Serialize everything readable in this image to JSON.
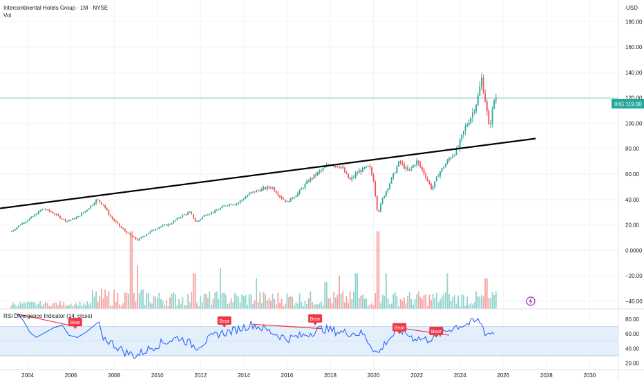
{
  "header": {
    "symbol_title": "Intercontinental Hotels Group · 1M · NYSE",
    "vol_label": "Vol",
    "currency": "USD",
    "rsi_title": "RSI Divergence Indicator (14, close)"
  },
  "price_tag": {
    "ticker": "IHG",
    "value": "119.80",
    "price": 119.8
  },
  "colors": {
    "up": "#26a69a",
    "down": "#ef5350",
    "vol_up": "#8fd3cb",
    "vol_down": "#f5a3a0",
    "rsi_line": "#2962ff",
    "rsi_band": "#e3f0fb",
    "bear": "#f23645",
    "trendline": "#000000",
    "price_line": "#26a69a",
    "lightning": "#9c27b0"
  },
  "chart_data": {
    "type": "candlestick",
    "price_axis": {
      "ticks": [
        "180.00",
        "160.00",
        "140.00",
        "120.00",
        "100.00",
        "80.00",
        "60.00",
        "40.00",
        "20.00",
        "0.0000",
        "−20.00",
        "−40.00"
      ],
      "values": [
        180,
        160,
        140,
        120,
        100,
        80,
        60,
        40,
        20,
        0,
        -20,
        -40
      ],
      "ylim": [
        -46,
        197
      ]
    },
    "time_axis": {
      "ticks": [
        "2004",
        "2006",
        "2008",
        "2010",
        "2012",
        "2014",
        "2016",
        "2018",
        "2020",
        "2022",
        "2024",
        "2026",
        "2028",
        "2030"
      ],
      "years": [
        2004,
        2006,
        2008,
        2010,
        2012,
        2014,
        2016,
        2018,
        2020,
        2022,
        2024,
        2026,
        2028,
        2030
      ],
      "xlim": [
        2002.72,
        2031.33
      ]
    },
    "price_anchors": [
      [
        2003.25,
        15
      ],
      [
        2003.7,
        21
      ],
      [
        2004.2,
        26
      ],
      [
        2004.7,
        33
      ],
      [
        2005.1,
        30
      ],
      [
        2005.5,
        26
      ],
      [
        2005.8,
        23
      ],
      [
        2006.3,
        26
      ],
      [
        2006.8,
        33
      ],
      [
        2007.2,
        40
      ],
      [
        2007.5,
        36
      ],
      [
        2007.8,
        27
      ],
      [
        2008.3,
        18
      ],
      [
        2008.8,
        11
      ],
      [
        2009.1,
        8
      ],
      [
        2009.5,
        13
      ],
      [
        2010.0,
        18
      ],
      [
        2010.6,
        21
      ],
      [
        2011.1,
        27
      ],
      [
        2011.5,
        30
      ],
      [
        2011.8,
        22
      ],
      [
        2012.2,
        28
      ],
      [
        2012.7,
        31
      ],
      [
        2013.2,
        36
      ],
      [
        2013.7,
        37
      ],
      [
        2014.3,
        45
      ],
      [
        2014.8,
        48
      ],
      [
        2015.3,
        50
      ],
      [
        2015.7,
        42
      ],
      [
        2016.0,
        38
      ],
      [
        2016.5,
        45
      ],
      [
        2017.0,
        55
      ],
      [
        2017.5,
        62
      ],
      [
        2018.0,
        68
      ],
      [
        2018.5,
        66
      ],
      [
        2018.9,
        55
      ],
      [
        2019.3,
        62
      ],
      [
        2019.8,
        66
      ],
      [
        2020.0,
        55
      ],
      [
        2020.2,
        28
      ],
      [
        2020.4,
        40
      ],
      [
        2020.8,
        55
      ],
      [
        2021.2,
        70
      ],
      [
        2021.6,
        62
      ],
      [
        2022.0,
        70
      ],
      [
        2022.3,
        62
      ],
      [
        2022.7,
        48
      ],
      [
        2023.0,
        60
      ],
      [
        2023.5,
        72
      ],
      [
        2023.9,
        80
      ],
      [
        2024.2,
        95
      ],
      [
        2024.5,
        105
      ],
      [
        2024.8,
        118
      ],
      [
        2025.0,
        135
      ],
      [
        2025.2,
        115
      ],
      [
        2025.35,
        95
      ],
      [
        2025.6,
        120
      ],
      [
        2025.7,
        119.8
      ]
    ],
    "trendline": {
      "start": [
        2001.8,
        31
      ],
      "end": [
        2027.5,
        88
      ]
    },
    "volume_spikes": [
      [
        2008.8,
        15
      ],
      [
        2009.1,
        -12
      ],
      [
        2011.7,
        -18
      ],
      [
        2012.9,
        -14
      ],
      [
        2014.6,
        -22
      ],
      [
        2017.8,
        -25
      ],
      [
        2018.4,
        -20
      ],
      [
        2019.2,
        -18
      ],
      [
        2020.2,
        15
      ],
      [
        2020.6,
        -18
      ],
      [
        2023.4,
        -18
      ],
      [
        2025.2,
        -22
      ]
    ],
    "rsi": {
      "ticks": [
        "80.00",
        "60.00",
        "40.00",
        "20.00"
      ],
      "values": [
        80,
        60,
        40,
        20
      ],
      "ylim": [
        11,
        94
      ],
      "band": [
        30,
        70
      ],
      "anchors": [
        [
          2007.5,
          55
        ],
        [
          2008.5,
          35
        ],
        [
          2009.0,
          30
        ],
        [
          2010.0,
          45
        ],
        [
          2011.0,
          55
        ],
        [
          2011.8,
          42
        ],
        [
          2012.8,
          60
        ],
        [
          2013.4,
          63
        ],
        [
          2014.4,
          73
        ],
        [
          2015.3,
          62
        ],
        [
          2016.0,
          53
        ],
        [
          2016.8,
          58
        ],
        [
          2017.6,
          67
        ],
        [
          2018.5,
          62
        ],
        [
          2019.5,
          60
        ],
        [
          2020.2,
          32
        ],
        [
          2020.6,
          50
        ],
        [
          2021.2,
          66
        ],
        [
          2021.8,
          55
        ],
        [
          2022.5,
          52
        ],
        [
          2023.2,
          62
        ],
        [
          2023.8,
          70
        ],
        [
          2024.3,
          73
        ],
        [
          2024.9,
          78
        ],
        [
          2025.2,
          60
        ],
        [
          2025.6,
          62
        ]
      ],
      "pre_segment": [
        [
          2003.4,
          88
        ],
        [
          2003.6,
          85
        ],
        [
          2003.8,
          78
        ],
        [
          2004.1,
          62
        ],
        [
          2004.4,
          55
        ],
        [
          2004.7,
          60
        ],
        [
          2005.2,
          68
        ],
        [
          2005.6,
          72
        ],
        [
          2005.9,
          58
        ],
        [
          2006.3,
          55
        ],
        [
          2006.7,
          62
        ],
        [
          2007.1,
          72
        ],
        [
          2007.3,
          76
        ]
      ],
      "bear_lines": [
        {
          "from": [
            2003.5,
            87
          ],
          "to": [
            2006.2,
            70
          ]
        },
        {
          "from": [
            2014.4,
            73
          ],
          "to": [
            2017.6,
            67
          ]
        },
        {
          "from": [
            2021.2,
            68
          ],
          "to": [
            2023.5,
            58
          ]
        }
      ],
      "bear_labels": [
        {
          "text": "Bear",
          "x": 2006.2,
          "y": 75
        },
        {
          "text": "Bear",
          "x": 2013.1,
          "y": 77
        },
        {
          "text": "Bear",
          "x": 2017.3,
          "y": 80
        },
        {
          "text": "Bear",
          "x": 2021.2,
          "y": 68
        },
        {
          "text": "Bear",
          "x": 2022.9,
          "y": 63
        }
      ]
    }
  }
}
